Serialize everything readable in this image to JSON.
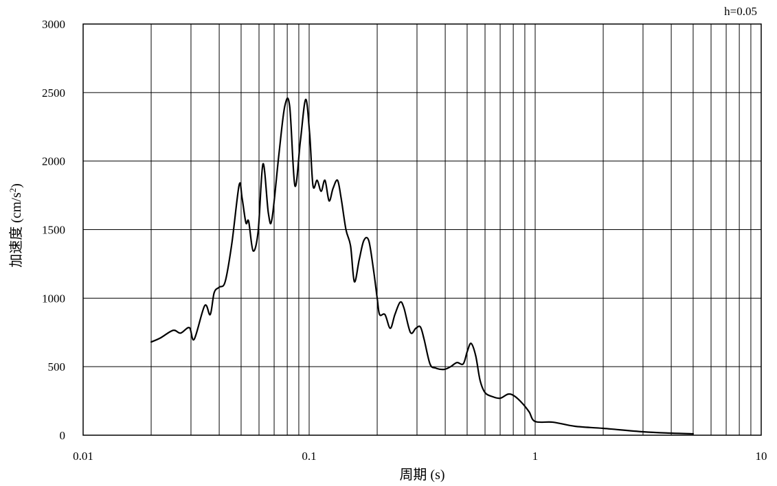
{
  "chart_data": {
    "type": "line",
    "annotation": "h=0.05",
    "xlabel": "周期 (s)",
    "ylabel_main": "加速度 (cm/s",
    "ylabel_sup": "2",
    "ylabel_close": ")",
    "xscale": "log",
    "xlim": [
      0.01,
      10
    ],
    "ylim": [
      0,
      3000
    ],
    "grid": true,
    "x_ticks": [
      0.01,
      0.1,
      1,
      10
    ],
    "x_tick_labels": [
      "0.01",
      "0.1",
      "1",
      "10"
    ],
    "y_ticks": [
      0,
      500,
      1000,
      1500,
      2000,
      2500,
      3000
    ],
    "y_tick_labels": [
      "0",
      "500",
      "1000",
      "1500",
      "2000",
      "2500",
      "3000"
    ],
    "series": [
      {
        "color": "#000000",
        "x": [
          0.02,
          0.022,
          0.025,
          0.027,
          0.0295,
          0.031,
          0.0345,
          0.0365,
          0.038,
          0.04,
          0.0425,
          0.0455,
          0.049,
          0.0505,
          0.0525,
          0.054,
          0.0565,
          0.0595,
          0.0625,
          0.066,
          0.0685,
          0.0735,
          0.078,
          0.082,
          0.0865,
          0.0915,
          0.0965,
          0.1005,
          0.104,
          0.1085,
          0.113,
          0.1175,
          0.1225,
          0.1275,
          0.1335,
          0.1385,
          0.1455,
          0.1525,
          0.1585,
          0.1665,
          0.1745,
          0.1835,
          0.1925,
          0.2,
          0.205,
          0.2165,
          0.2285,
          0.2395,
          0.2525,
          0.2625,
          0.2805,
          0.2965,
          0.3105,
          0.3225,
          0.3425,
          0.3625,
          0.3955,
          0.4225,
          0.4505,
          0.4805,
          0.5005,
          0.5205,
          0.5455,
          0.5705,
          0.6005,
          0.6505,
          0.7005,
          0.7605,
          0.8105,
          0.8805,
          0.9405,
          1.0,
          1.2,
          1.5,
          2.0,
          3.0,
          4.0,
          5.0
        ],
        "values": [
          680,
          710,
          765,
          745,
          785,
          700,
          945,
          880,
          1040,
          1080,
          1120,
          1400,
          1825,
          1730,
          1550,
          1560,
          1345,
          1490,
          1980,
          1620,
          1580,
          2050,
          2400,
          2400,
          1820,
          2150,
          2450,
          2200,
          1820,
          1860,
          1780,
          1860,
          1710,
          1800,
          1860,
          1730,
          1500,
          1380,
          1120,
          1280,
          1420,
          1420,
          1210,
          1000,
          880,
          880,
          780,
          880,
          970,
          930,
          750,
          780,
          790,
          700,
          520,
          490,
          480,
          500,
          530,
          520,
          610,
          670,
          580,
          400,
          310,
          280,
          270,
          300,
          285,
          230,
          170,
          100,
          95,
          65,
          50,
          25,
          15,
          10
        ]
      }
    ]
  }
}
